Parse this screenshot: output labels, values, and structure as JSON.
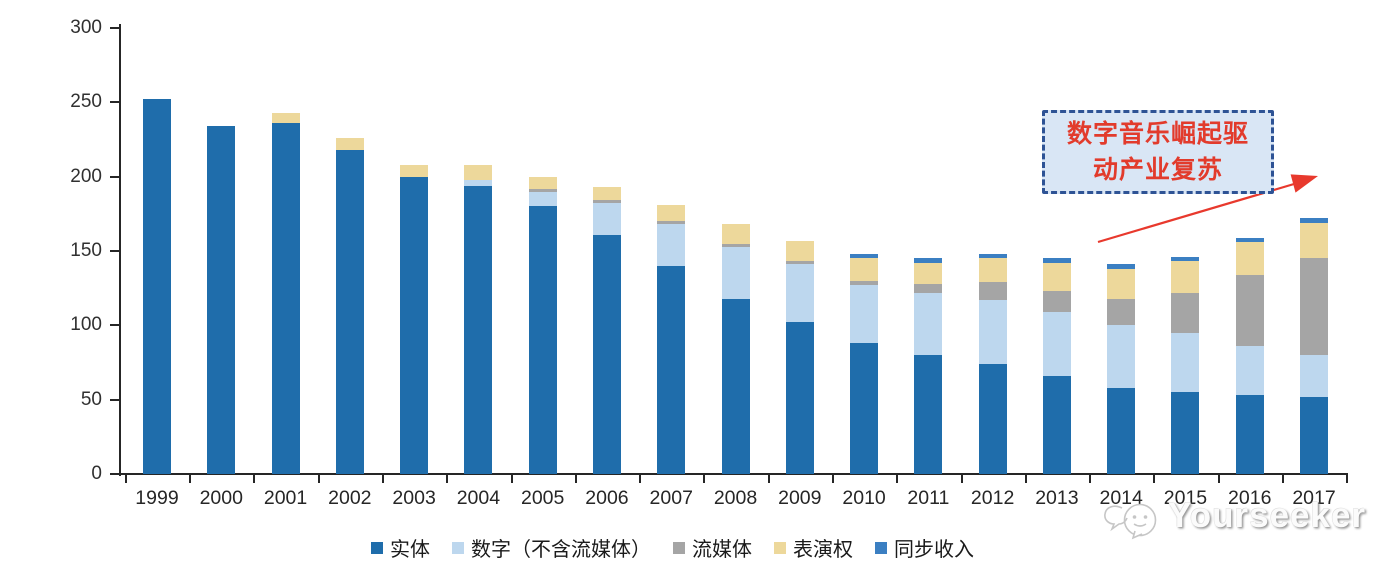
{
  "chart_data": {
    "type": "bar",
    "stacked": true,
    "categories": [
      "1999",
      "2000",
      "2001",
      "2002",
      "2003",
      "2004",
      "2005",
      "2006",
      "2007",
      "2008",
      "2009",
      "2010",
      "2011",
      "2012",
      "2013",
      "2014",
      "2015",
      "2016",
      "2017"
    ],
    "series": [
      {
        "name": "实体",
        "color": "#1F6DAB",
        "values": [
          252,
          234,
          236,
          218,
          200,
          194,
          180,
          161,
          140,
          118,
          102,
          88,
          80,
          74,
          66,
          58,
          55,
          53,
          52
        ]
      },
      {
        "name": "数字（不含流媒体）",
        "color": "#BDD7EE",
        "values": [
          0,
          0,
          0,
          0,
          0,
          4,
          10,
          21,
          28,
          35,
          39,
          39,
          42,
          43,
          43,
          42,
          40,
          33,
          28
        ]
      },
      {
        "name": "流媒体",
        "color": "#A5A5A5",
        "values": [
          0,
          0,
          0,
          0,
          0,
          0,
          2,
          2,
          2,
          2,
          2,
          3,
          6,
          12,
          14,
          18,
          27,
          48,
          65
        ]
      },
      {
        "name": "表演权",
        "color": "#EDD89B",
        "values": [
          0,
          0,
          7,
          8,
          8,
          10,
          8,
          9,
          11,
          13,
          14,
          15,
          14,
          16,
          19,
          20,
          21,
          22,
          24
        ]
      },
      {
        "name": "同步收入",
        "color": "#3B7FC2",
        "values": [
          0,
          0,
          0,
          0,
          0,
          0,
          0,
          0,
          0,
          0,
          0,
          3,
          3,
          3,
          3,
          3,
          3,
          3,
          3
        ]
      }
    ],
    "ylim": [
      0,
      300
    ],
    "yticks": [
      0,
      50,
      100,
      150,
      200,
      250,
      300
    ],
    "xlabel": "",
    "ylabel": "",
    "title": "",
    "grid": false,
    "legend_position": "bottom"
  },
  "annotation": {
    "line1": "数字音乐崛起驱",
    "line2": "动产业复苏",
    "text_color": "#E23B2C",
    "border_color": "#2E5395",
    "fill_color": "#D9E6F5",
    "arrow_color": "#E8392D"
  },
  "watermark": {
    "text": "Yourseeker"
  }
}
